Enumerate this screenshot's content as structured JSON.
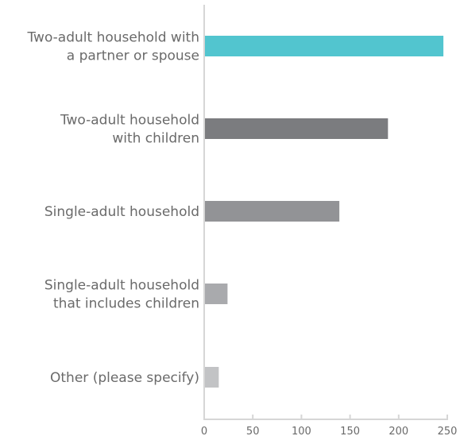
{
  "chart_data": {
    "type": "bar",
    "orientation": "horizontal",
    "categories": [
      [
        "Two-adult household with",
        "a partner or spouse"
      ],
      [
        "Two-adult household",
        "with children"
      ],
      [
        "Single-adult household"
      ],
      [
        "Single-adult household",
        "that includes children"
      ],
      [
        "Other (please specify)"
      ]
    ],
    "values": [
      246,
      189,
      139,
      24,
      15
    ],
    "bar_colors": [
      "#52c5cf",
      "#7b7c7f",
      "#929396",
      "#a9aaad",
      "#c2c3c5"
    ],
    "xlim": [
      0,
      250
    ],
    "xticks": [
      0,
      50,
      100,
      150,
      200,
      250
    ],
    "grid": false,
    "title": "",
    "xlabel": "",
    "ylabel": ""
  }
}
